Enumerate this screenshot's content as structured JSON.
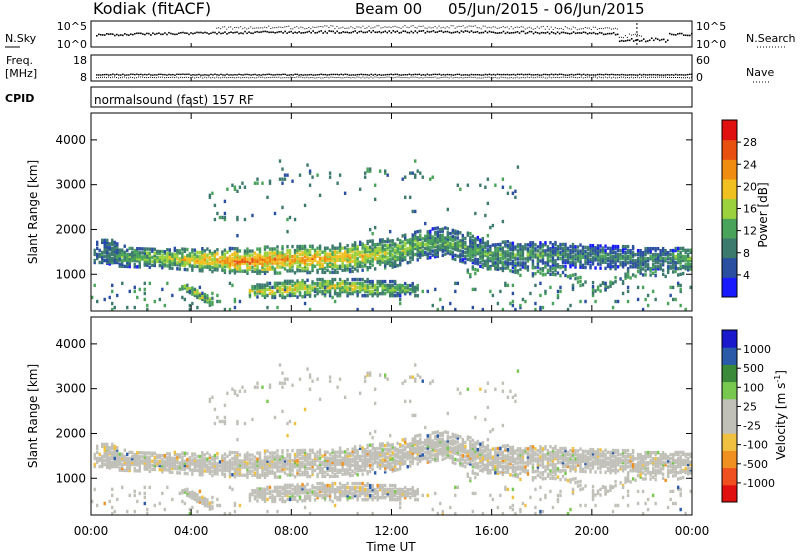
{
  "header": {
    "station": "Kodiak (fitACF)",
    "beam": "Beam 00",
    "dates": "05/Jun/2015 - 06/Jun/2015"
  },
  "nsky_panel": {
    "left_label": "N.Sky",
    "right_label": "N.Search",
    "left_ticks": [
      "10^5",
      "10^0"
    ],
    "right_ticks": [
      "10^5",
      "10^0"
    ]
  },
  "freq_panel": {
    "left_label_1": "Freq.",
    "left_label_2": "[MHz]",
    "right_label": "Nave",
    "left_ticks": [
      "18",
      "8"
    ],
    "right_ticks": [
      "60",
      "0"
    ]
  },
  "cpid_panel": {
    "label": "CPID",
    "text": "normalsound (fast) 157 RF"
  },
  "x_axis": {
    "label": "Time UT",
    "ticks": [
      "00:00",
      "04:00",
      "08:00",
      "12:00",
      "16:00",
      "20:00",
      "00:00"
    ]
  },
  "colors": {
    "power": [
      "#1a1aff",
      "#2a4ea0",
      "#3d7a6e",
      "#4aa35a",
      "#9bd13c",
      "#f0c020",
      "#f08c10",
      "#e85010",
      "#e01010"
    ],
    "velocity": [
      "#e01010",
      "#f05020",
      "#f09020",
      "#f0c040",
      "#c0c0b8",
      "#c0c0b8",
      "#78c850",
      "#3a8a3a",
      "#2a5aa8",
      "#1a1acc"
    ]
  },
  "chart_data": [
    {
      "type": "heatmap",
      "quantity": "power",
      "ylabel": "Slant Range [km]",
      "xlabel": "Time UT",
      "xlim": [
        0,
        24
      ],
      "ylim": [
        180,
        4600
      ],
      "yticks": [
        1000,
        2000,
        3000,
        4000
      ],
      "colorbar": {
        "label": "Power [dB]",
        "ticks": [
          "28",
          "24",
          "20",
          "16",
          "12",
          "8",
          "4"
        ],
        "range": [
          0,
          32
        ]
      },
      "bands": [
        {
          "name": "main",
          "t": [
            0.5,
            1,
            2,
            3,
            4,
            5,
            6,
            7,
            8,
            9,
            10,
            11,
            12,
            13,
            14,
            15,
            16,
            17,
            18,
            19,
            20,
            21,
            22,
            23,
            24
          ],
          "center": [
            1550,
            1470,
            1420,
            1400,
            1370,
            1350,
            1340,
            1360,
            1370,
            1380,
            1400,
            1460,
            1520,
            1680,
            1780,
            1620,
            1450,
            1500,
            1480,
            1470,
            1440,
            1420,
            1400,
            1400,
            1410
          ],
          "width": [
            250,
            250,
            220,
            220,
            240,
            260,
            280,
            300,
            300,
            300,
            320,
            320,
            320,
            320,
            320,
            340,
            300,
            300,
            280,
            260,
            260,
            260,
            240,
            240,
            240
          ],
          "power": [
            8,
            12,
            14,
            16,
            20,
            22,
            24,
            24,
            22,
            22,
            20,
            18,
            16,
            14,
            12,
            12,
            12,
            12,
            12,
            10,
            10,
            10,
            10,
            10,
            14
          ]
        },
        {
          "name": "lower",
          "t": [
            6.3,
            7,
            8,
            9,
            10,
            11,
            12,
            13
          ],
          "center": [
            660,
            680,
            720,
            760,
            760,
            740,
            720,
            700
          ],
          "width": [
            120,
            160,
            200,
            200,
            200,
            180,
            160,
            140
          ],
          "power": [
            18,
            20,
            20,
            18,
            18,
            16,
            14,
            12
          ]
        },
        {
          "name": "slant",
          "t": [
            3.6,
            4.2,
            4.8
          ],
          "center": [
            780,
            600,
            420
          ],
          "width": [
            110,
            110,
            100
          ],
          "power": [
            16,
            18,
            14
          ]
        }
      ]
    },
    {
      "type": "heatmap",
      "quantity": "velocity",
      "ylabel": "Slant Range [km]",
      "xlabel": "Time UT",
      "xlim": [
        0,
        24
      ],
      "ylim": [
        180,
        4600
      ],
      "yticks": [
        1000,
        2000,
        3000,
        4000
      ],
      "colorbar": {
        "label": "Velocity [m s-1]",
        "label_main": "Velocity [m s",
        "label_sup": "-1",
        "label_end": "]",
        "ticks": [
          "1000",
          "500",
          "100",
          "25",
          "-25",
          "-100",
          "-500",
          "-1000"
        ],
        "range": [
          -1250,
          1250
        ]
      }
    }
  ]
}
